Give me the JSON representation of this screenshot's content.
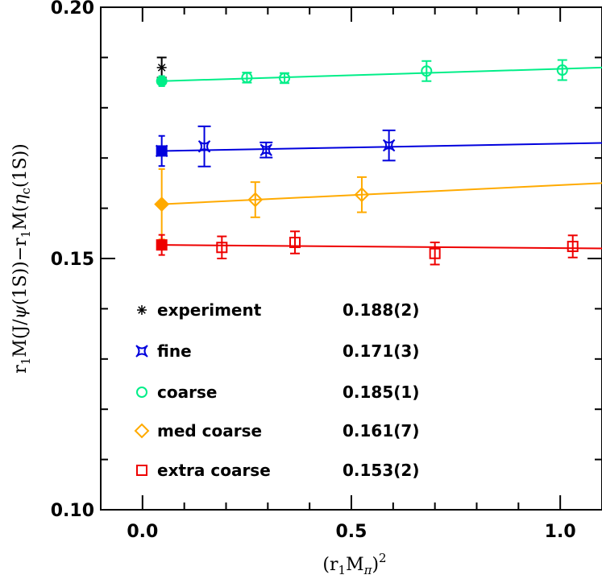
{
  "chart_data": {
    "type": "scatter",
    "xlabel": "(r₁M_π)²",
    "ylabel": "r₁M(J/ψ(1S)) − r₁M(η_c(1S))",
    "xlim": [
      -0.1,
      1.1
    ],
    "ylim": [
      0.1,
      0.2
    ],
    "x_ticks": [
      {
        "value": 0.0,
        "label": "0.0"
      },
      {
        "value": 0.5,
        "label": "0.5"
      },
      {
        "value": 1.0,
        "label": "1.0"
      }
    ],
    "y_ticks": [
      {
        "value": 0.1,
        "label": "0.10"
      },
      {
        "value": 0.15,
        "label": "0.15"
      },
      {
        "value": 0.2,
        "label": "0.20"
      }
    ],
    "grid": false,
    "legend_position": "bottom-left",
    "series": [
      {
        "name": "experiment",
        "value_label": "0.188(2)",
        "color": "#000000",
        "marker": "burst",
        "points": [
          {
            "x": 0.046,
            "y": 0.188,
            "err": 0.002
          }
        ],
        "extrapolated": null,
        "fit_line": null
      },
      {
        "name": "fine",
        "value_label": "0.171(3)",
        "color": "#0000dd",
        "marker": "cross-box",
        "points": [
          {
            "x": 0.148,
            "y": 0.1723,
            "err": 0.004
          },
          {
            "x": 0.296,
            "y": 0.1716,
            "err": 0.0015
          },
          {
            "x": 0.59,
            "y": 0.1725,
            "err": 0.003
          }
        ],
        "extrapolated": {
          "x": 0.046,
          "y": 0.1714,
          "err": 0.003
        },
        "fit_line": [
          [
            0.046,
            0.1714
          ],
          [
            1.1,
            0.173
          ]
        ]
      },
      {
        "name": "coarse",
        "value_label": "0.185(1)",
        "color": "#00ee88",
        "marker": "circle",
        "points": [
          {
            "x": 0.25,
            "y": 0.186,
            "err": 0.001
          },
          {
            "x": 0.34,
            "y": 0.1859,
            "err": 0.001
          },
          {
            "x": 0.68,
            "y": 0.1873,
            "err": 0.002
          },
          {
            "x": 1.005,
            "y": 0.1875,
            "err": 0.002
          }
        ],
        "extrapolated": {
          "x": 0.046,
          "y": 0.1853,
          "err": 0.001
        },
        "fit_line": [
          [
            0.046,
            0.1853
          ],
          [
            1.1,
            0.188
          ]
        ]
      },
      {
        "name": "med coarse",
        "value_label": "0.161(7)",
        "color": "#ffaa00",
        "marker": "diamond",
        "points": [
          {
            "x": 0.27,
            "y": 0.1617,
            "err": 0.0035
          },
          {
            "x": 0.525,
            "y": 0.1627,
            "err": 0.0035
          }
        ],
        "extrapolated": {
          "x": 0.046,
          "y": 0.1608,
          "err": 0.007
        },
        "fit_line": [
          [
            0.046,
            0.1608
          ],
          [
            1.1,
            0.165
          ]
        ]
      },
      {
        "name": "extra coarse",
        "value_label": "0.153(2)",
        "color": "#ee0000",
        "marker": "square",
        "points": [
          {
            "x": 0.19,
            "y": 0.1522,
            "err": 0.0022
          },
          {
            "x": 0.365,
            "y": 0.1532,
            "err": 0.0022
          },
          {
            "x": 0.7,
            "y": 0.151,
            "err": 0.0022
          },
          {
            "x": 1.03,
            "y": 0.1524,
            "err": 0.0022
          }
        ],
        "extrapolated": {
          "x": 0.046,
          "y": 0.1527,
          "err": 0.002
        },
        "fit_line": [
          [
            0.046,
            0.1527
          ],
          [
            1.1,
            0.152
          ]
        ]
      }
    ]
  }
}
